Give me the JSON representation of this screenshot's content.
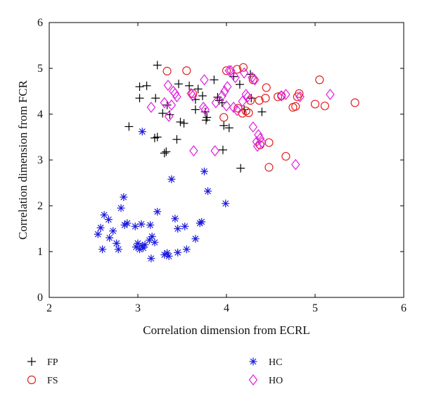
{
  "chart_data": {
    "type": "scatter",
    "xlabel": "Correlation dimension from ECRL",
    "ylabel": "Correlation dimension from FCR",
    "xlim": [
      2,
      6
    ],
    "ylim": [
      0,
      6
    ],
    "xticks": [
      2,
      3,
      4,
      5,
      6
    ],
    "yticks": [
      0,
      1,
      2,
      3,
      4,
      5,
      6
    ],
    "grid": false,
    "legend_position": "below",
    "series": [
      {
        "name": "FP",
        "marker": "plus",
        "color": "#000000",
        "points": [
          [
            3.22,
            5.07
          ],
          [
            3.02,
            4.6
          ],
          [
            3.1,
            4.62
          ],
          [
            3.2,
            4.35
          ],
          [
            3.02,
            4.35
          ],
          [
            3.28,
            4.02
          ],
          [
            3.33,
            4.2
          ],
          [
            2.9,
            3.73
          ],
          [
            3.36,
            3.99
          ],
          [
            3.48,
            3.83
          ],
          [
            3.52,
            3.8
          ],
          [
            3.19,
            3.48
          ],
          [
            3.22,
            3.5
          ],
          [
            3.32,
            3.18
          ],
          [
            3.3,
            3.15
          ],
          [
            3.44,
            3.45
          ],
          [
            3.46,
            4.66
          ],
          [
            3.58,
            4.62
          ],
          [
            3.68,
            4.55
          ],
          [
            3.73,
            4.4
          ],
          [
            3.65,
            4.32
          ],
          [
            3.65,
            4.1
          ],
          [
            3.76,
            4.05
          ],
          [
            3.78,
            3.93
          ],
          [
            3.77,
            3.87
          ],
          [
            3.86,
            4.75
          ],
          [
            3.9,
            4.37
          ],
          [
            3.92,
            4.3
          ],
          [
            3.95,
            4.25
          ],
          [
            3.97,
            3.75
          ],
          [
            4.03,
            3.7
          ],
          [
            3.96,
            3.22
          ],
          [
            4.08,
            4.82
          ],
          [
            4.15,
            4.65
          ],
          [
            4.27,
            4.87
          ],
          [
            4.28,
            4.35
          ],
          [
            4.2,
            4.1
          ],
          [
            4.4,
            4.05
          ],
          [
            4.16,
            2.82
          ]
        ]
      },
      {
        "name": "FS",
        "marker": "circle",
        "color": "#e32020",
        "points": [
          [
            3.33,
            4.94
          ],
          [
            3.55,
            4.95
          ],
          [
            3.62,
            4.45
          ],
          [
            4.0,
            4.95
          ],
          [
            4.12,
            4.98
          ],
          [
            4.19,
            5.02
          ],
          [
            4.13,
            4.13
          ],
          [
            4.18,
            4.02
          ],
          [
            4.22,
            4.07
          ],
          [
            4.25,
            4.03
          ],
          [
            4.3,
            4.75
          ],
          [
            4.37,
            4.3
          ],
          [
            4.44,
            4.35
          ],
          [
            4.45,
            4.58
          ],
          [
            4.58,
            4.38
          ],
          [
            4.62,
            4.4
          ],
          [
            4.75,
            4.15
          ],
          [
            4.78,
            4.17
          ],
          [
            4.82,
            4.45
          ],
          [
            4.8,
            4.38
          ],
          [
            5.0,
            4.22
          ],
          [
            5.05,
            4.75
          ],
          [
            5.11,
            4.18
          ],
          [
            5.45,
            4.25
          ],
          [
            4.38,
            3.33
          ],
          [
            4.48,
            3.38
          ],
          [
            4.48,
            2.84
          ],
          [
            4.67,
            3.08
          ],
          [
            3.97,
            3.93
          ],
          [
            4.27,
            4.3
          ]
        ]
      },
      {
        "name": "HC",
        "marker": "asterisk",
        "color": "#1a1adf",
        "points": [
          [
            3.05,
            3.62
          ],
          [
            3.38,
            2.58
          ],
          [
            3.75,
            2.75
          ],
          [
            3.79,
            2.32
          ],
          [
            3.99,
            2.05
          ],
          [
            2.84,
            2.19
          ],
          [
            2.81,
            1.95
          ],
          [
            2.62,
            1.8
          ],
          [
            2.55,
            1.38
          ],
          [
            2.58,
            1.52
          ],
          [
            2.67,
            1.7
          ],
          [
            2.72,
            1.45
          ],
          [
            2.68,
            1.3
          ],
          [
            2.76,
            1.18
          ],
          [
            2.78,
            1.05
          ],
          [
            2.6,
            1.05
          ],
          [
            2.85,
            1.58
          ],
          [
            2.88,
            1.62
          ],
          [
            2.97,
            1.55
          ],
          [
            3.04,
            1.6
          ],
          [
            3.14,
            1.58
          ],
          [
            3.22,
            1.87
          ],
          [
            3.42,
            1.72
          ],
          [
            3.53,
            1.55
          ],
          [
            3.45,
            1.5
          ],
          [
            3.7,
            1.62
          ],
          [
            3.72,
            1.65
          ],
          [
            3.65,
            1.28
          ],
          [
            3.0,
            1.18
          ],
          [
            3.05,
            1.12
          ],
          [
            3.02,
            1.05
          ],
          [
            3.08,
            1.15
          ],
          [
            3.13,
            1.25
          ],
          [
            3.19,
            1.2
          ],
          [
            3.16,
            1.33
          ],
          [
            3.3,
            0.93
          ],
          [
            3.33,
            0.97
          ],
          [
            3.35,
            0.9
          ],
          [
            3.15,
            0.85
          ],
          [
            3.45,
            0.98
          ],
          [
            3.55,
            1.05
          ],
          [
            2.98,
            1.1
          ],
          [
            3.06,
            1.08
          ]
        ]
      },
      {
        "name": "HO",
        "marker": "diamond",
        "color": "#e01fe0",
        "points": [
          [
            3.34,
            4.63
          ],
          [
            3.4,
            4.5
          ],
          [
            3.42,
            4.45
          ],
          [
            3.44,
            4.38
          ],
          [
            3.38,
            4.2
          ],
          [
            3.3,
            4.25
          ],
          [
            3.15,
            4.15
          ],
          [
            3.35,
            3.95
          ],
          [
            3.6,
            4.45
          ],
          [
            3.62,
            4.4
          ],
          [
            3.75,
            4.75
          ],
          [
            3.74,
            4.15
          ],
          [
            3.76,
            4.1
          ],
          [
            3.88,
            4.25
          ],
          [
            3.95,
            4.4
          ],
          [
            3.98,
            4.5
          ],
          [
            4.01,
            4.6
          ],
          [
            4.03,
            4.95
          ],
          [
            4.05,
            4.95
          ],
          [
            4.1,
            4.8
          ],
          [
            4.2,
            4.9
          ],
          [
            4.22,
            4.43
          ],
          [
            4.24,
            4.38
          ],
          [
            4.29,
            4.8
          ],
          [
            4.32,
            4.75
          ],
          [
            4.18,
            4.28
          ],
          [
            4.12,
            4.08
          ],
          [
            4.3,
            3.72
          ],
          [
            4.36,
            3.55
          ],
          [
            4.38,
            3.47
          ],
          [
            4.35,
            3.3
          ],
          [
            4.4,
            3.38
          ],
          [
            4.62,
            4.4
          ],
          [
            4.67,
            4.43
          ],
          [
            4.83,
            4.38
          ],
          [
            4.78,
            2.9
          ],
          [
            5.17,
            4.43
          ],
          [
            3.63,
            3.2
          ],
          [
            3.87,
            3.2
          ],
          [
            4.0,
            4.18
          ],
          [
            4.08,
            4.15
          ],
          [
            4.34,
            3.4
          ]
        ]
      }
    ]
  }
}
